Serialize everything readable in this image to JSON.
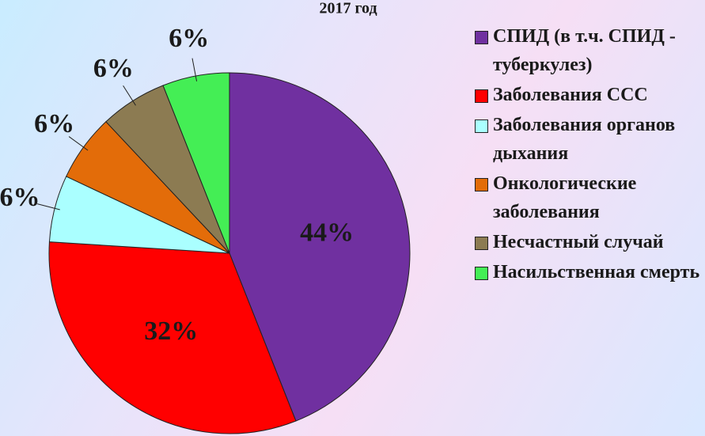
{
  "chart_data": {
    "type": "pie",
    "title": "2017 год",
    "categories": [
      "СПИД (в т.ч. СПИД - туберкулез)",
      "Заболевания ССС",
      "Заболевания органов дыхания",
      "Онкологические заболевания",
      "Несчастный случай",
      "Насильственная смерть"
    ],
    "values": [
      44,
      32,
      6,
      6,
      6,
      6
    ],
    "value_labels": [
      "44%",
      "32%",
      "6%",
      "6%",
      "6%",
      "6%"
    ],
    "colors": [
      "#7030a0",
      "#ff0000",
      "#aaffff",
      "#e36c09",
      "#8c7b52",
      "#44ee55"
    ],
    "legend": "right"
  }
}
